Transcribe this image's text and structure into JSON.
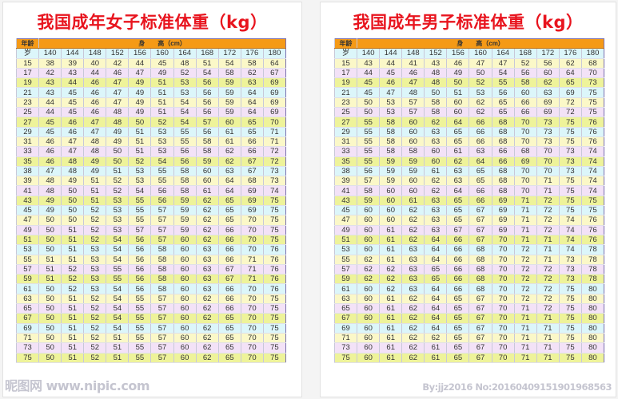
{
  "colors": {
    "title": "#e8141e",
    "header": "#f59a16",
    "row_cycle": [
      "#dcf6fa",
      "#fbf8c8",
      "#f3e2f7",
      "#eef39a"
    ]
  },
  "tables": [
    {
      "title": "我国成年女子标准体重（kg）",
      "age_header": "年龄",
      "height_header": "身　　高（cm）",
      "unit_label": "岁",
      "heights": [
        "140",
        "144",
        "148",
        "152",
        "156",
        "160",
        "164",
        "168",
        "172",
        "176",
        "180"
      ],
      "rows": [
        [
          "15",
          "38",
          "39",
          "40",
          "42",
          "44",
          "45",
          "48",
          "51",
          "54",
          "58",
          "64"
        ],
        [
          "17",
          "42",
          "43",
          "44",
          "46",
          "47",
          "49",
          "52",
          "54",
          "58",
          "62",
          "67"
        ],
        [
          "19",
          "43",
          "44",
          "46",
          "47",
          "49",
          "51",
          "53",
          "56",
          "59",
          "63",
          "69"
        ],
        [
          "21",
          "43",
          "45",
          "46",
          "47",
          "49",
          "51",
          "53",
          "56",
          "59",
          "64",
          "69"
        ],
        [
          "23",
          "44",
          "45",
          "46",
          "47",
          "49",
          "51",
          "54",
          "56",
          "59",
          "64",
          "69"
        ],
        [
          "25",
          "44",
          "45",
          "46",
          "48",
          "49",
          "51",
          "54",
          "56",
          "59",
          "64",
          "69"
        ],
        [
          "27",
          "45",
          "46",
          "47",
          "48",
          "50",
          "52",
          "54",
          "57",
          "60",
          "65",
          "70"
        ],
        [
          "29",
          "45",
          "46",
          "47",
          "49",
          "51",
          "53",
          "55",
          "56",
          "61",
          "65",
          "71"
        ],
        [
          "31",
          "46",
          "47",
          "48",
          "49",
          "51",
          "53",
          "55",
          "58",
          "61",
          "66",
          "71"
        ],
        [
          "33",
          "46",
          "47",
          "48",
          "50",
          "51",
          "53",
          "56",
          "58",
          "62",
          "66",
          "72"
        ],
        [
          "35",
          "46",
          "48",
          "49",
          "50",
          "52",
          "54",
          "56",
          "59",
          "62",
          "67",
          "72"
        ],
        [
          "38",
          "47",
          "48",
          "49",
          "51",
          "53",
          "55",
          "58",
          "60",
          "63",
          "67",
          "73"
        ],
        [
          "39",
          "48",
          "49",
          "51",
          "52",
          "53",
          "55",
          "58",
          "60",
          "64",
          "68",
          "73"
        ],
        [
          "41",
          "48",
          "50",
          "51",
          "52",
          "54",
          "56",
          "58",
          "61",
          "64",
          "69",
          "74"
        ],
        [
          "43",
          "49",
          "50",
          "51",
          "53",
          "55",
          "56",
          "59",
          "62",
          "65",
          "69",
          "75"
        ],
        [
          "45",
          "49",
          "50",
          "52",
          "53",
          "55",
          "57",
          "59",
          "62",
          "65",
          "69",
          "75"
        ],
        [
          "47",
          "50",
          "50",
          "52",
          "53",
          "55",
          "57",
          "59",
          "62",
          "65",
          "70",
          "75"
        ],
        [
          "49",
          "50",
          "51",
          "52",
          "53",
          "57",
          "57",
          "59",
          "62",
          "66",
          "70",
          "75"
        ],
        [
          "51",
          "50",
          "51",
          "52",
          "54",
          "56",
          "57",
          "60",
          "62",
          "66",
          "70",
          "75"
        ],
        [
          "53",
          "50",
          "51",
          "53",
          "54",
          "56",
          "58",
          "60",
          "63",
          "66",
          "70",
          "76"
        ],
        [
          "55",
          "51",
          "51",
          "53",
          "54",
          "56",
          "58",
          "60",
          "63",
          "66",
          "71",
          "76"
        ],
        [
          "57",
          "51",
          "52",
          "53",
          "55",
          "56",
          "58",
          "60",
          "63",
          "67",
          "71",
          "76"
        ],
        [
          "59",
          "51",
          "52",
          "53",
          "55",
          "56",
          "58",
          "60",
          "63",
          "67",
          "71",
          "76"
        ],
        [
          "61",
          "50",
          "52",
          "53",
          "54",
          "56",
          "58",
          "60",
          "63",
          "66",
          "70",
          "76"
        ],
        [
          "63",
          "50",
          "51",
          "52",
          "54",
          "55",
          "57",
          "60",
          "62",
          "66",
          "70",
          "75"
        ],
        [
          "65",
          "50",
          "51",
          "52",
          "54",
          "55",
          "57",
          "60",
          "62",
          "66",
          "70",
          "75"
        ],
        [
          "67",
          "50",
          "51",
          "52",
          "54",
          "55",
          "57",
          "60",
          "62",
          "65",
          "70",
          "75"
        ],
        [
          "69",
          "50",
          "51",
          "52",
          "54",
          "55",
          "57",
          "60",
          "62",
          "65",
          "70",
          "75"
        ],
        [
          "71",
          "50",
          "51",
          "52",
          "51",
          "55",
          "57",
          "60",
          "62",
          "65",
          "70",
          "75"
        ],
        [
          "73",
          "50",
          "51",
          "52",
          "51",
          "55",
          "57",
          "60",
          "62",
          "65",
          "70",
          "75"
        ],
        [
          "75",
          "50",
          "51",
          "52",
          "51",
          "55",
          "57",
          "60",
          "62",
          "65",
          "70",
          "75"
        ]
      ]
    },
    {
      "title": "我国成年男子标准体重（kg）",
      "age_header": "年龄",
      "height_header": "身　　高（cm）",
      "unit_label": "岁",
      "heights": [
        "140",
        "144",
        "148",
        "152",
        "156",
        "160",
        "164",
        "168",
        "172",
        "176",
        "180"
      ],
      "rows": [
        [
          "15",
          "43",
          "44",
          "41",
          "43",
          "46",
          "47",
          "47",
          "52",
          "56",
          "62",
          "68"
        ],
        [
          "17",
          "44",
          "45",
          "46",
          "48",
          "49",
          "50",
          "54",
          "56",
          "60",
          "64",
          "70"
        ],
        [
          "19",
          "45",
          "46",
          "47",
          "48",
          "50",
          "52",
          "55",
          "58",
          "62",
          "65",
          "73"
        ],
        [
          "21",
          "45",
          "47",
          "48",
          "50",
          "51",
          "53",
          "56",
          "60",
          "63",
          "69",
          "75"
        ],
        [
          "23",
          "50",
          "53",
          "57",
          "58",
          "60",
          "62",
          "65",
          "66",
          "69",
          "72",
          "75"
        ],
        [
          "25",
          "50",
          "53",
          "57",
          "58",
          "60",
          "62",
          "65",
          "66",
          "69",
          "72",
          "75"
        ],
        [
          "27",
          "55",
          "58",
          "60",
          "62",
          "64",
          "66",
          "68",
          "70",
          "73",
          "75",
          "76"
        ],
        [
          "29",
          "55",
          "58",
          "60",
          "63",
          "65",
          "66",
          "68",
          "70",
          "73",
          "75",
          "76"
        ],
        [
          "31",
          "55",
          "58",
          "60",
          "63",
          "65",
          "66",
          "68",
          "70",
          "73",
          "75",
          "76"
        ],
        [
          "33",
          "55",
          "58",
          "58",
          "60",
          "61",
          "63",
          "66",
          "68",
          "70",
          "73",
          "74"
        ],
        [
          "35",
          "55",
          "59",
          "59",
          "60",
          "62",
          "64",
          "66",
          "69",
          "70",
          "73",
          "74"
        ],
        [
          "38",
          "56",
          "59",
          "59",
          "61",
          "63",
          "65",
          "68",
          "70",
          "70",
          "73",
          "74"
        ],
        [
          "39",
          "57",
          "59",
          "60",
          "62",
          "63",
          "65",
          "68",
          "70",
          "71",
          "75",
          "74"
        ],
        [
          "41",
          "58",
          "60",
          "60",
          "62",
          "64",
          "66",
          "68",
          "70",
          "71",
          "75",
          "74"
        ],
        [
          "43",
          "59",
          "60",
          "61",
          "63",
          "65",
          "66",
          "69",
          "71",
          "72",
          "75",
          "75"
        ],
        [
          "45",
          "60",
          "60",
          "62",
          "63",
          "65",
          "67",
          "69",
          "71",
          "72",
          "75",
          "75"
        ],
        [
          "47",
          "60",
          "60",
          "62",
          "63",
          "65",
          "67",
          "69",
          "71",
          "72",
          "74",
          "76"
        ],
        [
          "49",
          "60",
          "61",
          "62",
          "63",
          "67",
          "67",
          "69",
          "71",
          "72",
          "74",
          "76"
        ],
        [
          "51",
          "60",
          "61",
          "62",
          "64",
          "66",
          "67",
          "70",
          "71",
          "71",
          "74",
          "76"
        ],
        [
          "53",
          "60",
          "61",
          "63",
          "64",
          "66",
          "68",
          "70",
          "72",
          "71",
          "74",
          "78"
        ],
        [
          "55",
          "62",
          "61",
          "63",
          "64",
          "66",
          "68",
          "70",
          "72",
          "71",
          "73",
          "78"
        ],
        [
          "57",
          "62",
          "62",
          "63",
          "65",
          "66",
          "68",
          "70",
          "72",
          "72",
          "73",
          "78"
        ],
        [
          "59",
          "62",
          "62",
          "63",
          "65",
          "66",
          "68",
          "70",
          "72",
          "72",
          "73",
          "78"
        ],
        [
          "61",
          "60",
          "62",
          "63",
          "64",
          "66",
          "68",
          "70",
          "72",
          "72",
          "75",
          "80"
        ],
        [
          "63",
          "60",
          "61",
          "62",
          "64",
          "65",
          "67",
          "70",
          "72",
          "72",
          "75",
          "80"
        ],
        [
          "65",
          "60",
          "61",
          "62",
          "64",
          "65",
          "67",
          "70",
          "71",
          "72",
          "75",
          "80"
        ],
        [
          "67",
          "60",
          "61",
          "62",
          "64",
          "65",
          "67",
          "70",
          "71",
          "71",
          "75",
          "80"
        ],
        [
          "69",
          "60",
          "61",
          "62",
          "64",
          "65",
          "67",
          "70",
          "71",
          "71",
          "75",
          "80"
        ],
        [
          "71",
          "60",
          "61",
          "62",
          "62",
          "65",
          "67",
          "70",
          "71",
          "71",
          "75",
          "80"
        ],
        [
          "73",
          "60",
          "61",
          "62",
          "61",
          "65",
          "67",
          "70",
          "71",
          "71",
          "75",
          "80"
        ],
        [
          "75",
          "60",
          "61",
          "62",
          "61",
          "65",
          "67",
          "70",
          "71",
          "71",
          "75",
          "80"
        ]
      ]
    }
  ],
  "watermarks": {
    "left": "昵图网 www.nipic.com",
    "right": "By:jjz2016 No:20160409151901968563"
  }
}
